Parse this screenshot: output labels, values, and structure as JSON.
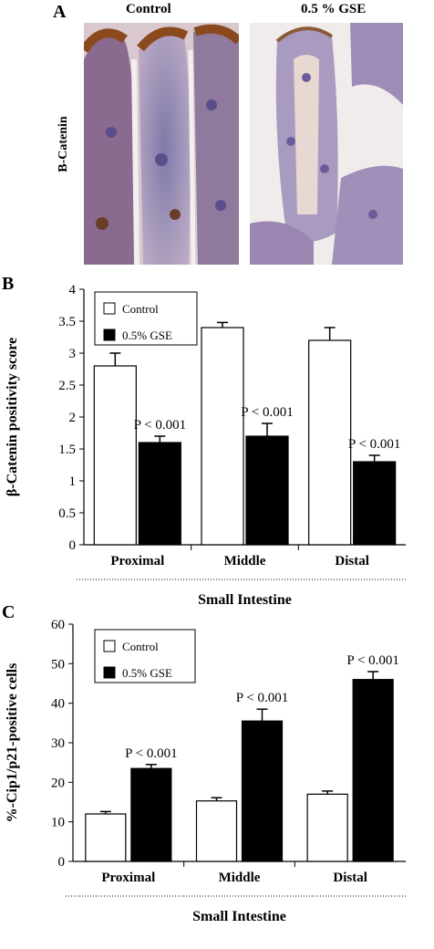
{
  "panelA": {
    "letter": "A",
    "col1_label": "Control",
    "col2_label": "0.5 % GSE",
    "row_label": "B-Catenin",
    "image1": "immunohistochemistry-control",
    "image2": "immunohistochemistry-gse"
  },
  "panelB": {
    "letter": "B"
  },
  "panelC": {
    "letter": "C"
  },
  "chart_data": [
    {
      "type": "bar",
      "categories": [
        "Proximal",
        "Middle",
        "Distal"
      ],
      "series": [
        {
          "name": "Control",
          "values": [
            2.8,
            3.4,
            3.2
          ],
          "errors": [
            0.2,
            0.08,
            0.2
          ],
          "color": "#ffffff"
        },
        {
          "name": "0.5% GSE",
          "values": [
            1.6,
            1.7,
            1.3
          ],
          "errors": [
            0.1,
            0.2,
            0.1
          ],
          "color": "#000000"
        }
      ],
      "annotations": [
        "P < 0.001",
        "P < 0.001",
        "P < 0.001"
      ],
      "ylabel": "β-Catenin positivity score",
      "xlabel": "Small Intestine",
      "ylim": [
        0,
        4
      ],
      "yticks": [
        "0",
        "0.5",
        "1",
        "1.5",
        "2",
        "2.5",
        "3",
        "3.5",
        "4"
      ],
      "ytick_values": [
        0,
        0.5,
        1,
        1.5,
        2,
        2.5,
        3,
        3.5,
        4
      ],
      "legend_position": "top-left"
    },
    {
      "type": "bar",
      "categories": [
        "Proximal",
        "Middle",
        "Distal"
      ],
      "series": [
        {
          "name": "Control",
          "values": [
            12,
            15.3,
            17
          ],
          "errors": [
            0.6,
            0.8,
            0.8
          ],
          "color": "#ffffff"
        },
        {
          "name": "0.5% GSE",
          "values": [
            23.5,
            35.5,
            46
          ],
          "errors": [
            1,
            3,
            2
          ],
          "color": "#000000"
        }
      ],
      "annotations": [
        "P < 0.001",
        "P < 0.001",
        "P < 0.001"
      ],
      "ylabel": "%-Cip1/p21-positive cells",
      "xlabel": "Small Intestine",
      "ylim": [
        0,
        60
      ],
      "yticks": [
        "0",
        "10",
        "20",
        "30",
        "40",
        "50",
        "60"
      ],
      "ytick_values": [
        0,
        10,
        20,
        30,
        40,
        50,
        60
      ],
      "legend_position": "top-left"
    }
  ]
}
